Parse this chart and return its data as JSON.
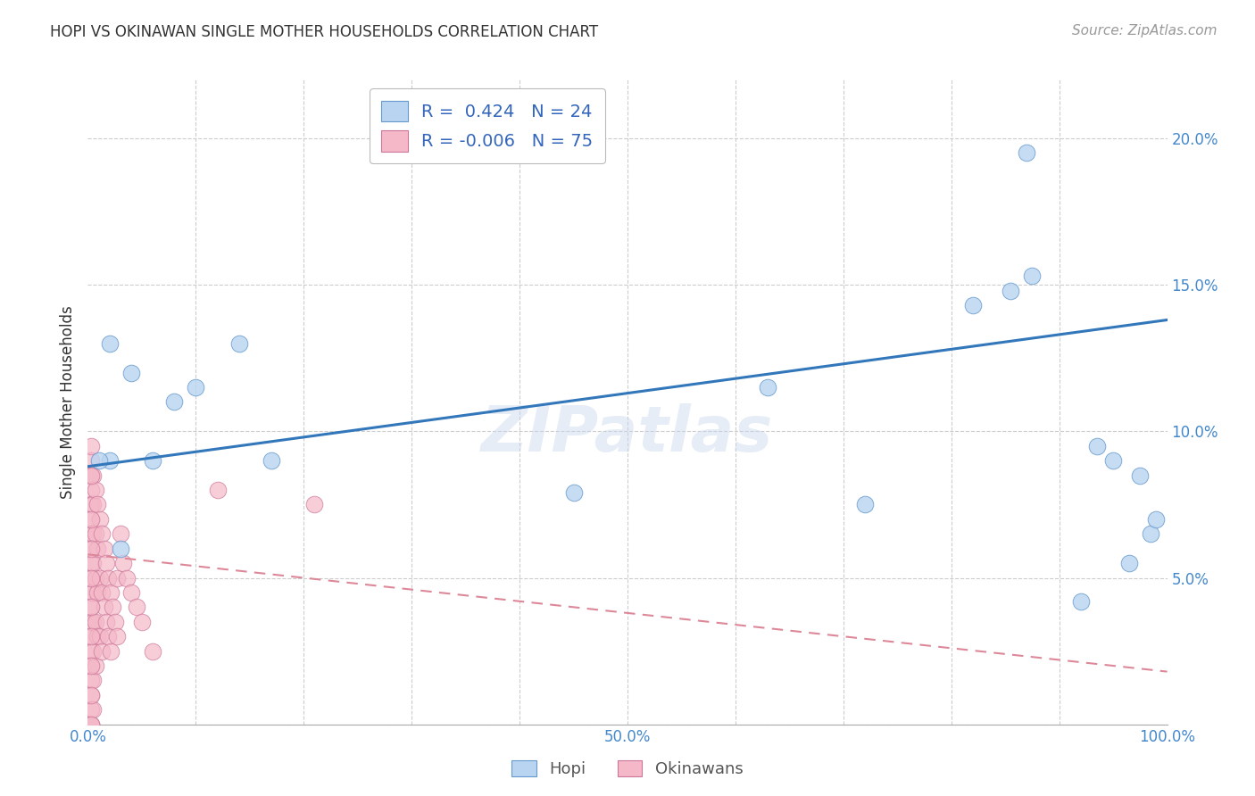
{
  "title": "HOPI VS OKINAWAN SINGLE MOTHER HOUSEHOLDS CORRELATION CHART",
  "source": "Source: ZipAtlas.com",
  "ylabel": "Single Mother Households",
  "xlim": [
    0.0,
    1.0
  ],
  "ylim": [
    0.0,
    0.22
  ],
  "yticks": [
    0.0,
    0.05,
    0.1,
    0.15,
    0.2
  ],
  "ytick_labels": [
    "",
    "5.0%",
    "10.0%",
    "15.0%",
    "20.0%"
  ],
  "hopi_color": "#b8d4f0",
  "okinawan_color": "#f4b8c8",
  "hopi_edge_color": "#6699cc",
  "okinawan_edge_color": "#cc7799",
  "hopi_line_color": "#3377bb",
  "okinawan_line_color": "#dd8899",
  "legend_text_color": "#3366bb",
  "hopi_R": 0.424,
  "hopi_N": 24,
  "okinawan_R": -0.006,
  "okinawan_N": 75,
  "hopi_line_x0": 0.0,
  "hopi_line_y0": 0.088,
  "hopi_line_x1": 1.0,
  "hopi_line_y1": 0.138,
  "okinawan_line_x0": 0.0,
  "okinawan_line_y0": 0.058,
  "okinawan_line_x1": 1.0,
  "okinawan_line_y1": 0.018,
  "hopi_x": [
    0.02,
    0.03,
    0.04,
    0.06,
    0.08,
    0.1,
    0.14,
    0.17,
    0.45,
    0.63,
    0.72,
    0.82,
    0.855,
    0.87,
    0.875,
    0.92,
    0.935,
    0.95,
    0.965,
    0.975,
    0.985,
    0.99,
    0.02,
    0.01
  ],
  "hopi_y": [
    0.13,
    0.06,
    0.12,
    0.09,
    0.11,
    0.115,
    0.13,
    0.09,
    0.079,
    0.115,
    0.075,
    0.143,
    0.148,
    0.195,
    0.153,
    0.042,
    0.095,
    0.09,
    0.055,
    0.085,
    0.065,
    0.07,
    0.09,
    0.09
  ],
  "okinawan_x": [
    0.003,
    0.003,
    0.003,
    0.003,
    0.003,
    0.003,
    0.003,
    0.003,
    0.003,
    0.003,
    0.003,
    0.003,
    0.003,
    0.003,
    0.003,
    0.003,
    0.003,
    0.003,
    0.003,
    0.003,
    0.005,
    0.005,
    0.005,
    0.005,
    0.005,
    0.005,
    0.005,
    0.005,
    0.005,
    0.007,
    0.007,
    0.007,
    0.007,
    0.007,
    0.009,
    0.009,
    0.009,
    0.009,
    0.011,
    0.011,
    0.011,
    0.013,
    0.013,
    0.013,
    0.015,
    0.015,
    0.017,
    0.017,
    0.019,
    0.019,
    0.021,
    0.021,
    0.023,
    0.025,
    0.027,
    0.027,
    0.03,
    0.033,
    0.036,
    0.04,
    0.045,
    0.05,
    0.06,
    0.12,
    0.21,
    0.003,
    0.003,
    0.003,
    0.003,
    0.003,
    0.003,
    0.003,
    0.003,
    0.003,
    0.003
  ],
  "okinawan_y": [
    0.09,
    0.085,
    0.08,
    0.075,
    0.07,
    0.065,
    0.06,
    0.055,
    0.05,
    0.045,
    0.04,
    0.035,
    0.03,
    0.025,
    0.02,
    0.015,
    0.01,
    0.005,
    0.0,
    0.0,
    0.085,
    0.075,
    0.065,
    0.055,
    0.045,
    0.035,
    0.025,
    0.015,
    0.005,
    0.08,
    0.065,
    0.05,
    0.035,
    0.02,
    0.075,
    0.06,
    0.045,
    0.03,
    0.07,
    0.05,
    0.03,
    0.065,
    0.045,
    0.025,
    0.06,
    0.04,
    0.055,
    0.035,
    0.05,
    0.03,
    0.045,
    0.025,
    0.04,
    0.035,
    0.05,
    0.03,
    0.065,
    0.055,
    0.05,
    0.045,
    0.04,
    0.035,
    0.025,
    0.08,
    0.075,
    0.095,
    0.085,
    0.07,
    0.06,
    0.05,
    0.04,
    0.03,
    0.02,
    0.01,
    0.0
  ],
  "watermark_text": "ZIPatlas",
  "background_color": "#ffffff",
  "grid_color": "#cccccc",
  "axis_color": "#4488cc",
  "figsize": [
    14.06,
    8.92
  ]
}
